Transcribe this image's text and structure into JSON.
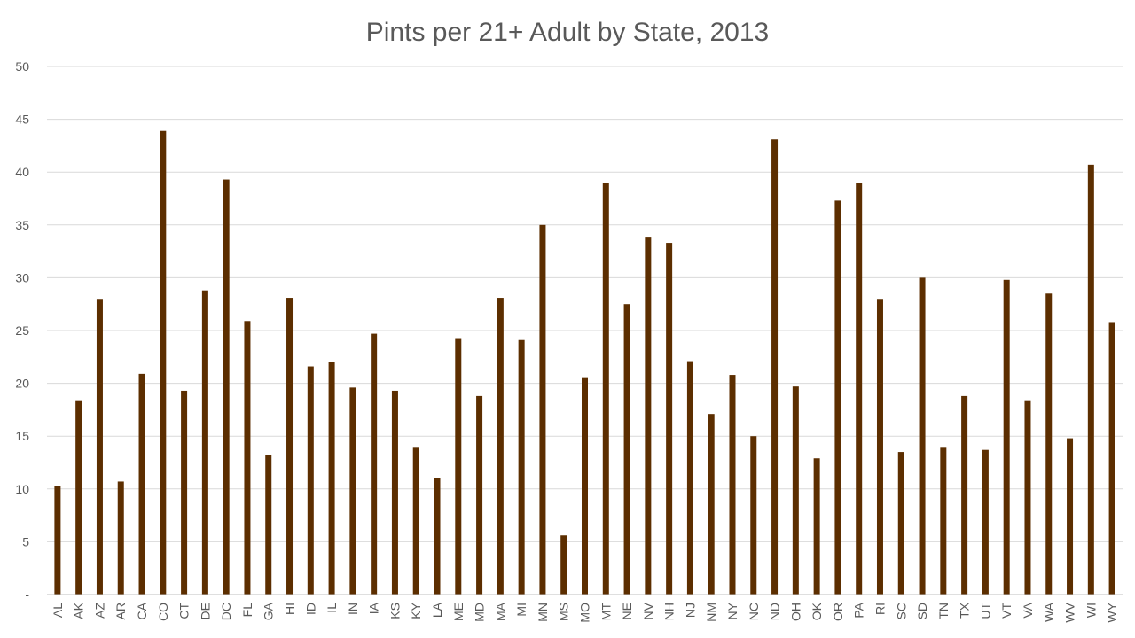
{
  "chart_data": {
    "type": "bar",
    "title": "Pints per 21+ Adult by State, 2013",
    "xlabel": "",
    "ylabel": "",
    "ylim": [
      0,
      50
    ],
    "y_ticks": [
      0,
      5,
      10,
      15,
      20,
      25,
      30,
      35,
      40,
      45,
      50
    ],
    "y_tick_labels": [
      "-",
      "5",
      "10",
      "15",
      "20",
      "25",
      "30",
      "35",
      "40",
      "45",
      "50"
    ],
    "grid": true,
    "bar_color": "#5c2e00",
    "categories": [
      "AL",
      "AK",
      "AZ",
      "AR",
      "CA",
      "CO",
      "CT",
      "DE",
      "DC",
      "FL",
      "GA",
      "HI",
      "ID",
      "IL",
      "IN",
      "IA",
      "KS",
      "KY",
      "LA",
      "ME",
      "MD",
      "MA",
      "MI",
      "MN",
      "MS",
      "MO",
      "MT",
      "NE",
      "NV",
      "NH",
      "NJ",
      "NM",
      "NY",
      "NC",
      "ND",
      "OH",
      "OK",
      "OR",
      "PA",
      "RI",
      "SC",
      "SD",
      "TN",
      "TX",
      "UT",
      "VT",
      "VA",
      "WA",
      "WV",
      "WI",
      "WY"
    ],
    "values": [
      10.3,
      18.4,
      28.0,
      10.7,
      20.9,
      43.9,
      19.3,
      28.8,
      39.3,
      25.9,
      13.2,
      28.1,
      21.6,
      22.0,
      19.6,
      24.7,
      19.3,
      13.9,
      11.0,
      24.2,
      18.8,
      28.1,
      24.1,
      35.0,
      5.6,
      20.5,
      39.0,
      27.5,
      33.8,
      33.3,
      22.1,
      17.1,
      20.8,
      15.0,
      43.1,
      19.7,
      12.9,
      37.3,
      39.0,
      28.0,
      13.5,
      30.0,
      13.9,
      18.8,
      13.7,
      29.8,
      18.4,
      28.5,
      14.8,
      40.7,
      25.8
    ]
  }
}
